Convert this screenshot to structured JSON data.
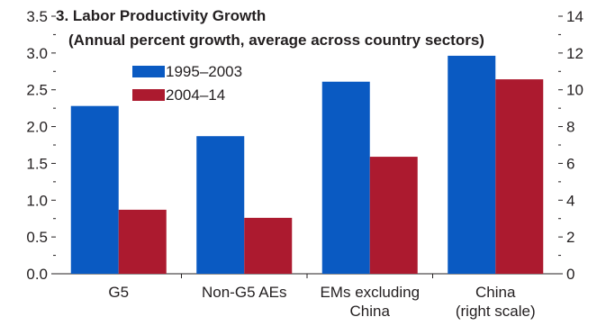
{
  "chart_data": {
    "type": "bar",
    "title": "3. Labor Productivity Growth",
    "subtitle": "(Annual percent growth, average across country sectors)",
    "categories": [
      [
        "G5"
      ],
      [
        "Non-G5 AEs"
      ],
      [
        "EMs excluding",
        "China"
      ],
      [
        "China",
        "(right scale)"
      ]
    ],
    "series": [
      {
        "name": "1995–2003",
        "color": "#0a5ac2",
        "values": [
          2.28,
          1.87,
          2.61,
          11.85
        ]
      },
      {
        "name": "2004–14",
        "color": "#ac1a2f",
        "values": [
          0.87,
          0.76,
          1.59,
          10.57
        ]
      }
    ],
    "value_axis_by_category": [
      "left",
      "left",
      "left",
      "right"
    ],
    "y_left": {
      "min": 0,
      "max": 3.5,
      "ticks": [
        "0.0",
        "0.5",
        "1.0",
        "1.5",
        "2.0",
        "2.5",
        "3.0",
        "3.5"
      ]
    },
    "y_right": {
      "min": 0,
      "max": 14,
      "ticks": [
        "0",
        "2",
        "4",
        "6",
        "8",
        "10",
        "12",
        "14"
      ]
    },
    "legend_position": "upper-left",
    "grid": false
  }
}
